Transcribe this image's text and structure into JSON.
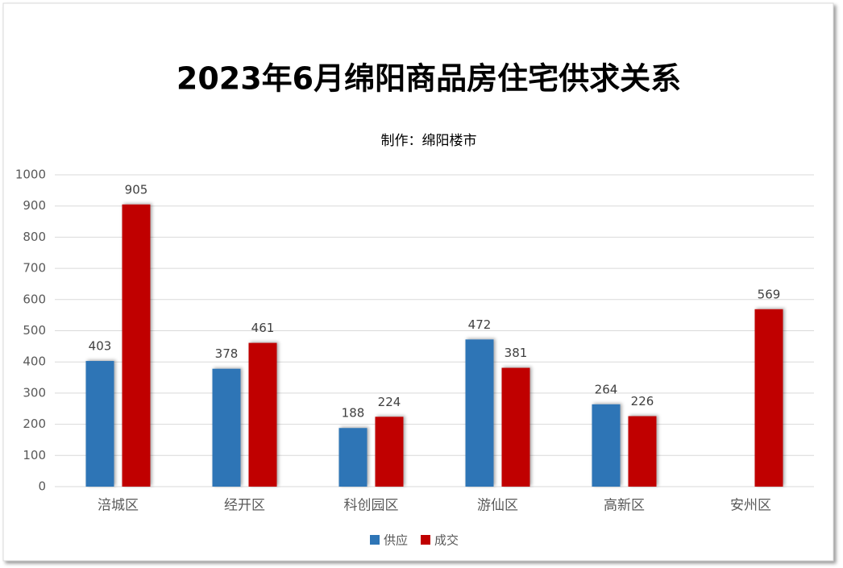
{
  "chart_data": {
    "type": "bar",
    "title": "2023年6月绵阳商品房住宅供求关系",
    "subtitle": "制作：绵阳楼市",
    "categories": [
      "涪城区",
      "经开区",
      "科创园区",
      "游仙区",
      "高新区",
      "安州区"
    ],
    "series": [
      {
        "name": "供应",
        "color": "#2e75b6",
        "values": [
          403,
          378,
          188,
          472,
          264,
          null
        ]
      },
      {
        "name": "成交",
        "color": "#c00000",
        "values": [
          905,
          461,
          224,
          381,
          226,
          569
        ]
      }
    ],
    "ylim": [
      0,
      1000
    ],
    "yticks": [
      0,
      100,
      200,
      300,
      400,
      500,
      600,
      700,
      800,
      900,
      1000
    ],
    "grid": true,
    "legend": "bottom"
  }
}
